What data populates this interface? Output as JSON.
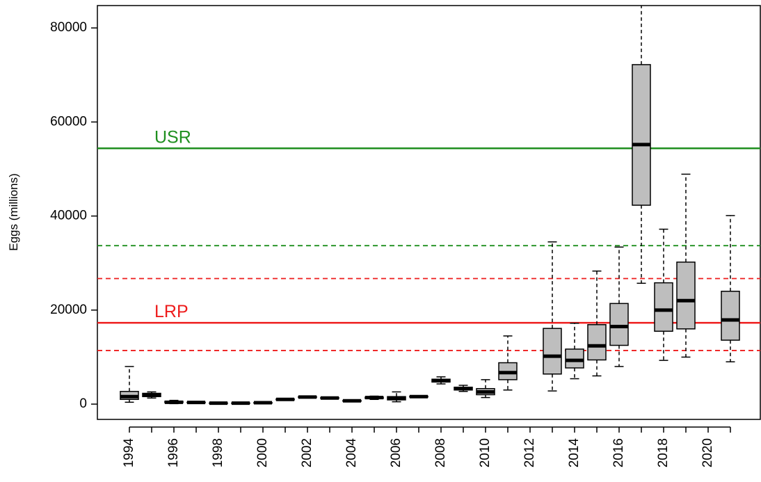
{
  "chart_data": {
    "type": "box",
    "y_label": "Eggs (millions)",
    "categories": [
      "1994",
      null,
      "1996",
      null,
      "1998",
      null,
      "2000",
      null,
      "2002",
      null,
      "2004",
      null,
      "2006",
      null,
      "2008",
      null,
      "2010",
      null,
      "2012",
      null,
      "2014",
      null,
      "2016",
      null,
      "2018",
      null,
      "2020",
      null
    ],
    "whislo": [
      400,
      1300,
      100,
      200,
      100,
      100,
      150,
      800,
      1300,
      1100,
      500,
      1000,
      500,
      1400,
      4300,
      2700,
      1400,
      3000,
      null,
      2800,
      5400,
      6000,
      8000,
      25700,
      9300,
      10000,
      null,
      9000
    ],
    "q1": [
      1000,
      1600,
      300,
      300,
      150,
      150,
      200,
      900,
      1400,
      1200,
      600,
      1200,
      900,
      1500,
      4700,
      3000,
      2000,
      5200,
      null,
      6400,
      7700,
      9400,
      12500,
      42300,
      15500,
      16000,
      null,
      13600
    ],
    "med": [
      1600,
      1900,
      400,
      350,
      200,
      200,
      300,
      1000,
      1500,
      1300,
      700,
      1400,
      1300,
      1600,
      5000,
      3300,
      2600,
      6700,
      null,
      10200,
      9300,
      12400,
      16500,
      55200,
      20000,
      22000,
      null,
      17900
    ],
    "q3": [
      2700,
      2300,
      600,
      400,
      250,
      250,
      350,
      1100,
      1600,
      1400,
      800,
      1500,
      1600,
      1700,
      5300,
      3600,
      3300,
      8800,
      null,
      16100,
      11700,
      16900,
      21400,
      72200,
      25800,
      30200,
      null,
      24000
    ],
    "whishi": [
      8000,
      2600,
      800,
      500,
      300,
      300,
      450,
      1200,
      1700,
      1500,
      900,
      1700,
      2600,
      1800,
      5800,
      4000,
      5200,
      14500,
      null,
      34500,
      17200,
      28300,
      33400,
      85000,
      37200,
      48900,
      null,
      40100
    ],
    "box_color": "#bebebe",
    "hlines": [
      {
        "value": 54400,
        "color": "#1f8f1f",
        "style": "solid",
        "label": "USR"
      },
      {
        "value": 33700,
        "color": "#1f8f1f",
        "style": "dashed"
      },
      {
        "value": 26700,
        "color": "#ee1c1c",
        "style": "dashed"
      },
      {
        "value": 17300,
        "color": "#ee1c1c",
        "style": "solid",
        "label": "LRP"
      },
      {
        "value": 11400,
        "color": "#ee1c1c",
        "style": "dashed"
      }
    ],
    "ylim": [
      -3250,
      84760
    ],
    "yticks": [
      0,
      20000,
      40000,
      60000,
      80000
    ]
  }
}
